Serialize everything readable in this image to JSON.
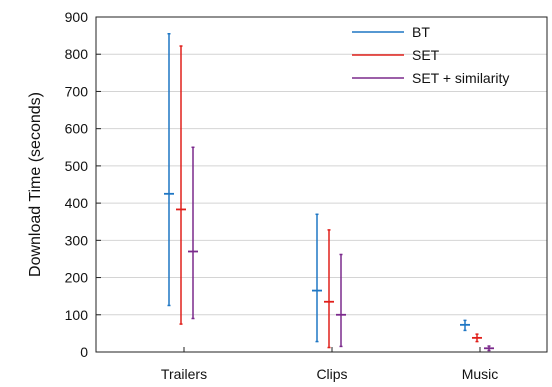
{
  "chart_data": {
    "type": "errorbar",
    "categories": [
      "Trailers",
      "Clips",
      "Music"
    ],
    "ylabel": "Download Time (seconds)",
    "xlabel": "",
    "ylim": [
      0,
      900
    ],
    "yticks": [
      0,
      100,
      200,
      300,
      400,
      500,
      600,
      700,
      800,
      900
    ],
    "grid": true,
    "legend_position": "top-right",
    "series": [
      {
        "name": "BT",
        "color": "#1f77c4",
        "mean": [
          425,
          165,
          73
        ],
        "low": [
          125,
          28,
          58
        ],
        "high": [
          855,
          370,
          85
        ]
      },
      {
        "name": "SET",
        "color": "#e0201b",
        "mean": [
          383,
          135,
          38
        ],
        "low": [
          75,
          12,
          28
        ],
        "high": [
          822,
          328,
          48
        ]
      },
      {
        "name": "SET + similarity",
        "color": "#7b2a8c",
        "mean": [
          270,
          100,
          10
        ],
        "low": [
          90,
          15,
          4
        ],
        "high": [
          550,
          262,
          16
        ]
      }
    ]
  }
}
